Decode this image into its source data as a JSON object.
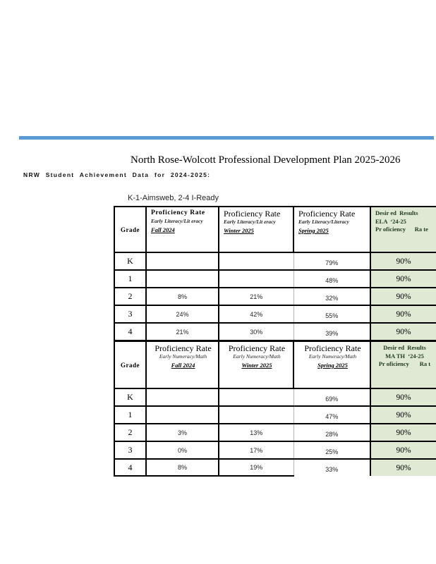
{
  "page": {
    "title": "North Rose-Wolcott Professional Development Plan 2025-2026",
    "subtitle": "NRW Student Achievement Data for 2024-2025:",
    "table_caption": "K-1-Aimsweb, 2-4 I-Ready",
    "accent_blue": "#5b9bd5",
    "green_fill": "#dfe9d4"
  },
  "tables": [
    {
      "subject": "ELA",
      "grade_header": "Grade",
      "columns": [
        {
          "title": "Proficiency Rate",
          "subtitle": "Early Literacy/Lit eracy",
          "period": "Fall 2024"
        },
        {
          "title": "Proficiency Rate",
          "subtitle": "Early Literacy/Lit eracy",
          "period": "Winter 2025"
        },
        {
          "title": "Proficiency Rate",
          "subtitle": "Early Literacy/Literacy",
          "period": "Spring 2025"
        }
      ],
      "desired": {
        "line1": "Desir ed  Results",
        "line2": "ELA  ‘24-25",
        "line3": "Pr oficiency      Ra te"
      },
      "rows": [
        {
          "grade": "K",
          "fall": "",
          "winter": "",
          "spring": "79%",
          "desired": "90%"
        },
        {
          "grade": "1",
          "fall": "",
          "winter": "",
          "spring": "48%",
          "desired": "90%"
        },
        {
          "grade": "2",
          "fall": "8%",
          "winter": "21%",
          "spring": "32%",
          "desired": "90%"
        },
        {
          "grade": "3",
          "fall": "24%",
          "winter": "42%",
          "spring": "55%",
          "desired": "90%"
        },
        {
          "grade": "4",
          "fall": "21%",
          "winter": "30%",
          "spring": "39%",
          "desired": "90%"
        }
      ]
    },
    {
      "subject": "MATH",
      "grade_header": "Grade",
      "columns": [
        {
          "title": "Proficiency Rate",
          "subtitle": "Early Numeracy/Math",
          "period": "Fall 2024"
        },
        {
          "title": "Proficiency Rate",
          "subtitle": "Early Numeracy/Math",
          "period": "Winter 2025"
        },
        {
          "title": "Proficiency Rate",
          "subtitle": "Early Numeracy/Math",
          "period": "Spring 2025"
        }
      ],
      "desired": {
        "line1": "Desir ed  Results",
        "line2": "MA TH  ‘24-25",
        "line3": "Pr oficiency       Ra t"
      },
      "rows": [
        {
          "grade": "K",
          "fall": "",
          "winter": "",
          "spring": "69%",
          "desired": "90%"
        },
        {
          "grade": "1",
          "fall": "",
          "winter": "",
          "spring": "47%",
          "desired": "90%"
        },
        {
          "grade": "2",
          "fall": "3%",
          "winter": "13%",
          "spring": "28%",
          "desired": "90%"
        },
        {
          "grade": "3",
          "fall": "0%",
          "winter": "17%",
          "spring": "25%",
          "desired": "90%"
        },
        {
          "grade": "4",
          "fall": "8%",
          "winter": "19%",
          "spring": "33%",
          "desired": "90%"
        }
      ]
    }
  ]
}
